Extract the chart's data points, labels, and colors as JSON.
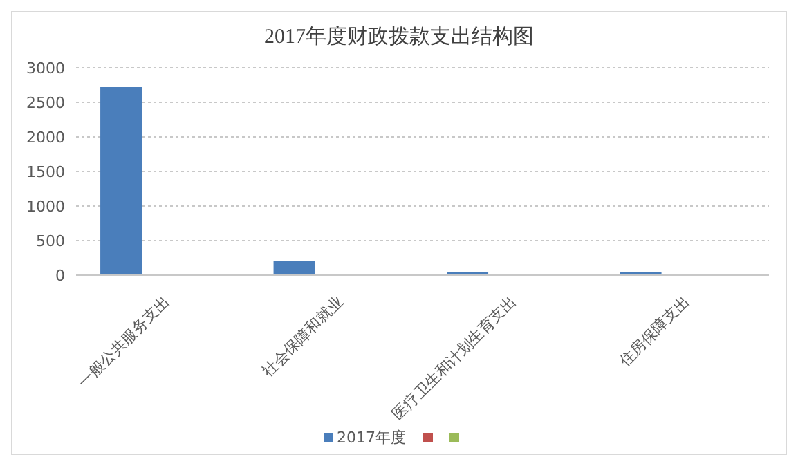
{
  "chart_data": {
    "type": "bar",
    "title": "2017年度财政拨款支出结构图",
    "categories": [
      "一般公共服务支出",
      "社会保障和就业",
      "医疗卫生和计划生育支出",
      "住房保障支出"
    ],
    "series": [
      {
        "name": "2017年度",
        "color": "#4a7ebb",
        "values": [
          2720,
          200,
          50,
          40
        ]
      },
      {
        "color": "#c0504d",
        "values": [
          null,
          null,
          null,
          null
        ]
      },
      {
        "color": "#9bbb59",
        "values": [
          null,
          null,
          null,
          null
        ]
      }
    ],
    "ylim": [
      0,
      3000
    ],
    "yticks": [
      0,
      500,
      1000,
      1500,
      2000,
      2500,
      3000
    ],
    "grid": "y",
    "legend": "bottom"
  }
}
